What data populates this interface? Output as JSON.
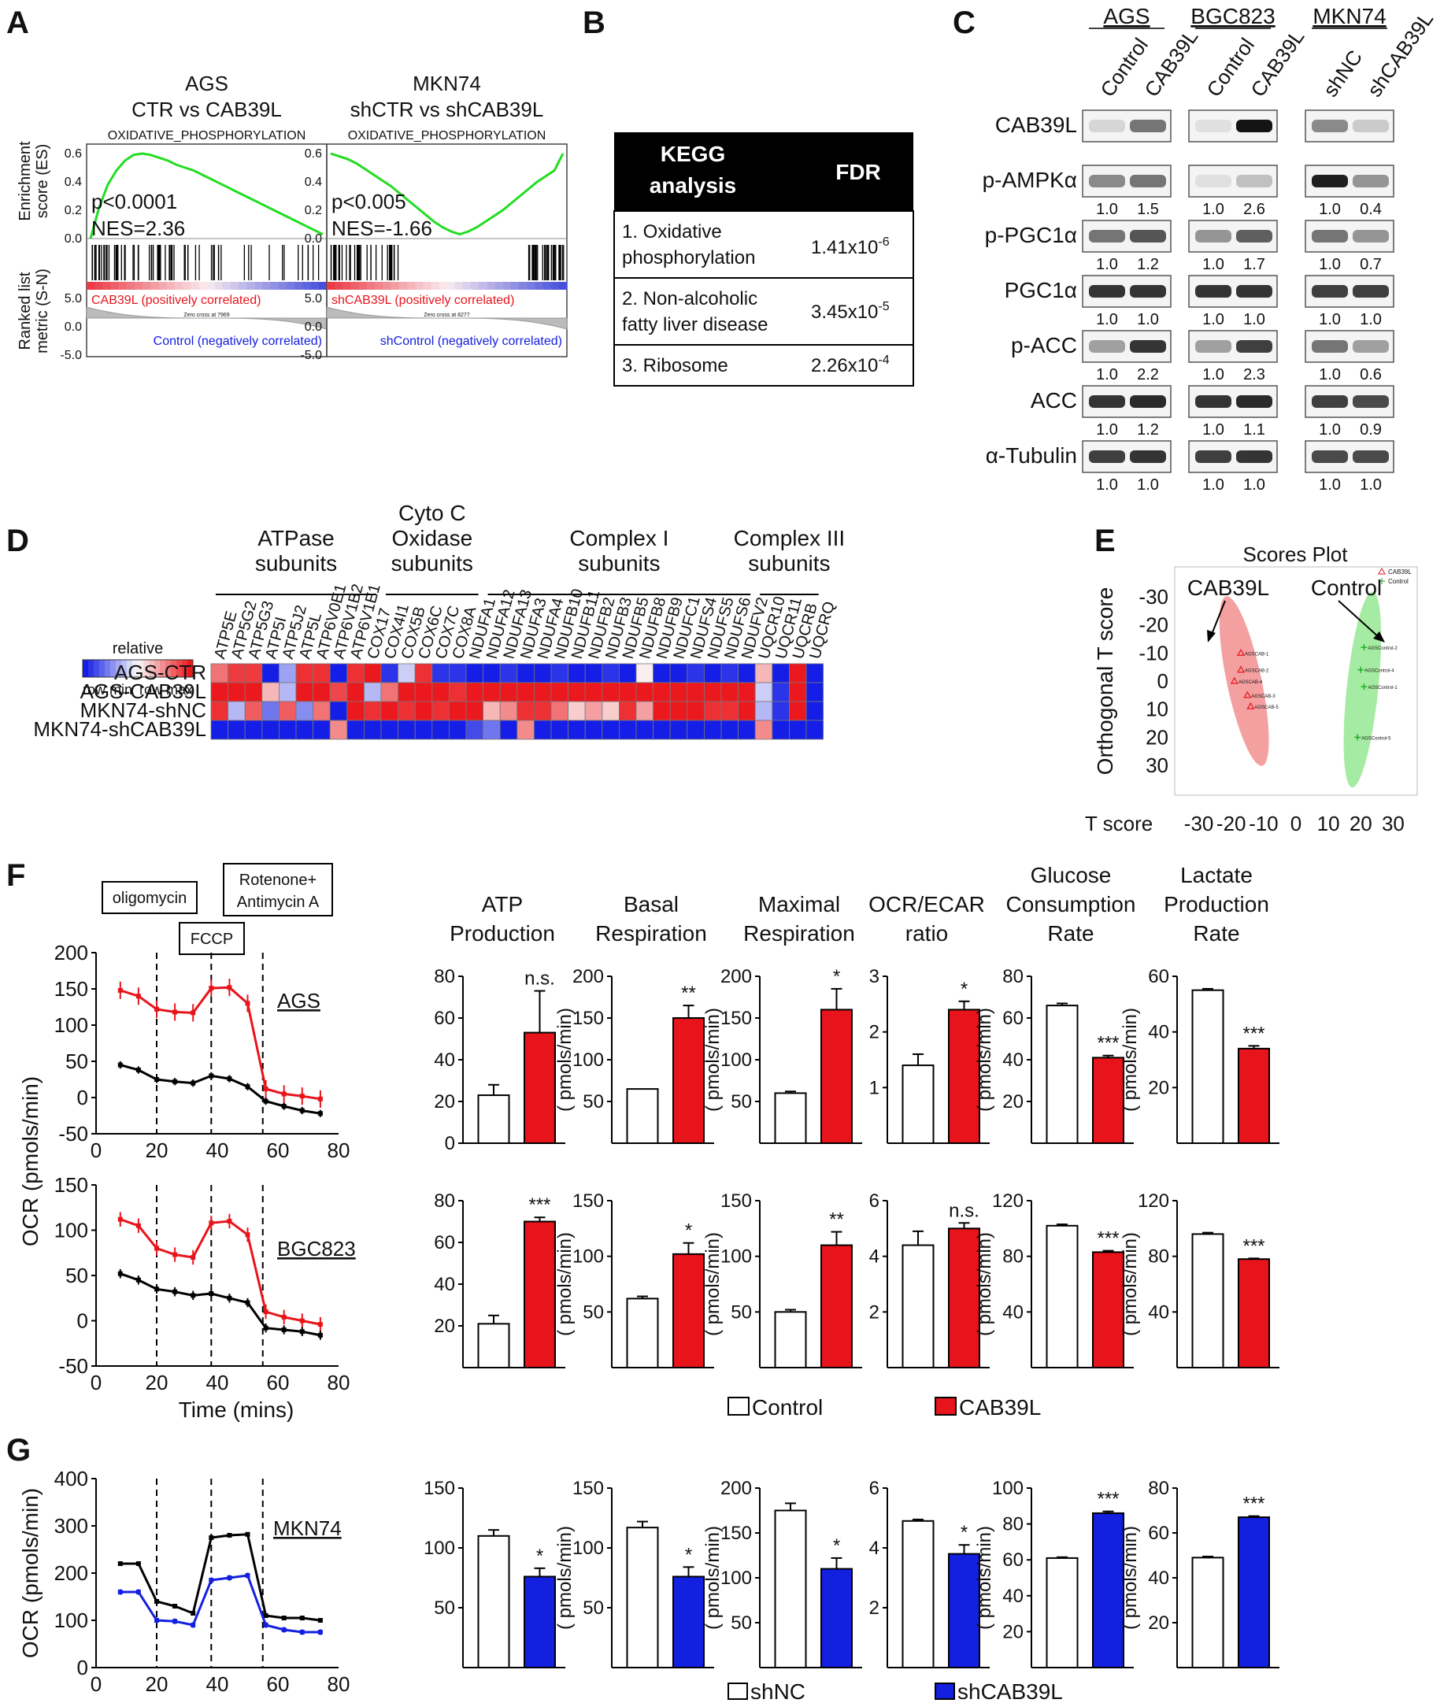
{
  "panel_labels": [
    "A",
    "B",
    "C",
    "D",
    "E",
    "F",
    "G"
  ],
  "panel_A": {
    "plots": [
      {
        "title_lines": [
          "AGS",
          "CTR vs CAB39L"
        ],
        "gene_set": "OXIDATIVE_PHOSPHORYLATION",
        "stats": [
          "p<0.0001",
          "NES=2.36"
        ],
        "pos_label": "CAB39L (positively correlated)",
        "neg_label": "Control (negatively correlated)",
        "zero_cross": "Zero cross at 7969",
        "es_ticks": [
          "0.6",
          "0.4",
          "0.2",
          "0.0"
        ],
        "rank_ticks": [
          "5.0",
          "0.0",
          "-5.0"
        ],
        "es_curve": [
          0.0,
          0.22,
          0.38,
          0.48,
          0.55,
          0.59,
          0.6,
          0.59,
          0.57,
          0.55,
          0.52,
          0.5,
          0.48,
          0.45,
          0.42,
          0.39,
          0.36,
          0.33,
          0.3,
          0.27,
          0.24,
          0.21,
          0.18,
          0.15,
          0.12,
          0.09,
          0.06,
          0.03
        ]
      },
      {
        "title_lines": [
          "MKN74",
          "shCTR vs shCAB39L"
        ],
        "gene_set": "OXIDATIVE_PHOSPHORYLATION",
        "stats": [
          "p<0.005",
          "NES=-1.66"
        ],
        "pos_label": "shCAB39L (positively correlated)",
        "neg_label": "shControl (negatively correlated)",
        "zero_cross": "Zero cross at 8277",
        "es_ticks": [
          "0.6",
          "0.4",
          "0.2",
          "0.0"
        ],
        "rank_ticks": [
          "5.0",
          "0.0",
          "-5.0"
        ],
        "es_curve": [
          0.6,
          0.58,
          0.56,
          0.53,
          0.49,
          0.45,
          0.41,
          0.37,
          0.32,
          0.27,
          0.22,
          0.17,
          0.12,
          0.08,
          0.05,
          0.03,
          0.05,
          0.08,
          0.12,
          0.16,
          0.2,
          0.25,
          0.3,
          0.35,
          0.4,
          0.44,
          0.48,
          0.6
        ]
      }
    ],
    "y_label_es": [
      "Enrichment",
      "score (ES)"
    ],
    "y_label_rank": [
      "Ranked list",
      "metric (S-N)"
    ]
  },
  "panel_B": {
    "header": [
      "KEGG",
      "analysis",
      "FDR"
    ],
    "rows": [
      {
        "term": [
          "1. Oxidative",
          "phosphorylation"
        ],
        "fdr": "1.41x10",
        "exp": "-6"
      },
      {
        "term": [
          "2. Non-alcoholic",
          "fatty liver disease"
        ],
        "fdr": "3.45x10",
        "exp": "-5"
      },
      {
        "term": [
          "3. Ribosome"
        ],
        "fdr": "2.26x10",
        "exp": "-4"
      }
    ]
  },
  "panel_C": {
    "cell_lines": [
      "AGS",
      "BGC823",
      "MKN74"
    ],
    "lanes": [
      [
        "Control",
        "CAB39L"
      ],
      [
        "Control",
        "CAB39L"
      ],
      [
        "shNC",
        "shCAB39L"
      ]
    ],
    "rows": [
      {
        "protein": "CAB39L",
        "values": []
      },
      {
        "protein": "p-AMPKα",
        "values": [
          [
            "1.0",
            "1.5"
          ],
          [
            "1.0",
            "2.6"
          ],
          [
            "1.0",
            "0.4"
          ]
        ]
      },
      {
        "protein": "p-PGC1α",
        "values": [
          [
            "1.0",
            "1.2"
          ],
          [
            "1.0",
            "1.7"
          ],
          [
            "1.0",
            "0.7"
          ]
        ]
      },
      {
        "protein": "PGC1α",
        "values": [
          [
            "1.0",
            "1.0"
          ],
          [
            "1.0",
            "1.0"
          ],
          [
            "1.0",
            "1.0"
          ]
        ]
      },
      {
        "protein": "p-ACC",
        "values": [
          [
            "1.0",
            "2.2"
          ],
          [
            "1.0",
            "2.3"
          ],
          [
            "1.0",
            "0.6"
          ]
        ]
      },
      {
        "protein": "ACC",
        "values": [
          [
            "1.0",
            "1.2"
          ],
          [
            "1.0",
            "1.1"
          ],
          [
            "1.0",
            "0.9"
          ]
        ]
      },
      {
        "protein": "α-Tubulin",
        "values": [
          [
            "1.0",
            "1.0"
          ],
          [
            "1.0",
            "1.0"
          ],
          [
            "1.0",
            "1.0"
          ]
        ]
      }
    ],
    "band_intensity": [
      [
        [
          0.1,
          0.55
        ],
        [
          0.05,
          1.0
        ],
        [
          0.45,
          0.15
        ]
      ],
      [
        [
          0.45,
          0.55
        ],
        [
          0.05,
          0.2
        ],
        [
          0.95,
          0.4
        ]
      ],
      [
        [
          0.55,
          0.7
        ],
        [
          0.4,
          0.65
        ],
        [
          0.55,
          0.4
        ]
      ],
      [
        [
          0.85,
          0.85
        ],
        [
          0.85,
          0.85
        ],
        [
          0.8,
          0.8
        ]
      ],
      [
        [
          0.35,
          0.85
        ],
        [
          0.35,
          0.8
        ],
        [
          0.55,
          0.35
        ]
      ],
      [
        [
          0.85,
          0.9
        ],
        [
          0.85,
          0.9
        ],
        [
          0.8,
          0.75
        ]
      ],
      [
        [
          0.8,
          0.85
        ],
        [
          0.8,
          0.85
        ],
        [
          0.75,
          0.75
        ]
      ]
    ]
  },
  "panel_D": {
    "groups": [
      {
        "name": [
          "ATPase",
          "subunits"
        ],
        "start": 0,
        "end": 9
      },
      {
        "name": [
          "Cyto C",
          "Oxidase",
          "subunits"
        ],
        "start": 10,
        "end": 15
      },
      {
        "name": [
          "Complex I",
          "subunits"
        ],
        "start": 16,
        "end": 31
      },
      {
        "name": [
          "Complex III",
          "subunits"
        ],
        "start": 32,
        "end": 35
      }
    ],
    "legend_title": "relative",
    "legend_labels": [
      "row min",
      "row max"
    ],
    "genes": [
      "ATP5E",
      "ATP5G2",
      "ATP5G3",
      "ATP5I",
      "ATP5J2",
      "ATP5L",
      "ATP6V0E1",
      "ATP6V1B2",
      "ATP6V1E1",
      "COX17",
      "COX4I1",
      "COX5B",
      "COX6C",
      "COX7C",
      "COX8A",
      "NDUFA1",
      "NDUFA12",
      "NDUFA13",
      "NDUFA3",
      "NDUFA4",
      "NDUFB10",
      "NDUFB11",
      "NDUFB2",
      "NDUFB3",
      "NDUFB5",
      "NDUFB8",
      "NDUFB9",
      "NDUFC1",
      "NDUFS4",
      "NDUFS5",
      "NDUFS6",
      "NDUFV2",
      "UQCR10",
      "UQCR11",
      "UQCRB",
      "UQCRQ"
    ],
    "samples": [
      "AGS-CTR",
      "AGS-CAB39L",
      "MKN74-shNC",
      "MKN74-shCAB39L"
    ],
    "matrix": [
      [
        0.6,
        0.85,
        0.85,
        -1,
        -0.4,
        0.9,
        0.9,
        -1,
        0.9,
        1,
        -0.9,
        -0.2,
        0.9,
        -0.9,
        -0.9,
        -1,
        -1,
        -0.9,
        -1,
        -1,
        -0.9,
        -1,
        -1,
        -0.9,
        -1,
        0.05,
        -1,
        -1,
        -0.9,
        -1,
        -0.9,
        -1,
        0.3,
        -1,
        1,
        -1
      ],
      [
        1,
        1,
        1,
        0.3,
        -0.3,
        1,
        1,
        0.8,
        1,
        -0.3,
        0.6,
        1,
        1,
        1,
        0.9,
        1,
        1,
        1,
        1,
        1,
        1,
        1,
        1,
        1,
        1,
        1,
        1,
        1,
        1,
        1,
        1,
        1,
        -0.2,
        -0.9,
        1,
        -1
      ],
      [
        0.9,
        -0.3,
        0.7,
        -0.6,
        0.7,
        -0.5,
        0.6,
        -1,
        1,
        0.9,
        1,
        0.9,
        1,
        0.9,
        1,
        1,
        0.3,
        0.5,
        0.9,
        0.9,
        0.6,
        0.2,
        0.4,
        0.2,
        0.9,
        0.4,
        1,
        1,
        1,
        0.9,
        0.9,
        1,
        -0.3,
        -0.9,
        1,
        -1
      ],
      [
        -1,
        -1,
        -1,
        -1,
        -1,
        -1,
        -1,
        0.5,
        -1,
        -1,
        -1,
        -1,
        -1,
        -1,
        -1,
        -0.8,
        -0.6,
        -1,
        0.5,
        -1,
        -1,
        -1,
        -1,
        -1,
        -1,
        -1,
        -1,
        -1,
        -1,
        -1,
        -1,
        -1,
        0.5,
        -1,
        -1,
        -1
      ]
    ]
  },
  "panel_E": {
    "title": "Scores Plot",
    "x_label": "T score",
    "y_label": "Orthogonal T score",
    "x_ticks": [
      "-30",
      "-20",
      "-10",
      "0",
      "10",
      "20",
      "30"
    ],
    "y_ticks": [
      "-30",
      "-20",
      "-10",
      "0",
      "10",
      "20",
      "30"
    ],
    "legend": [
      "CAB39L",
      "Control"
    ],
    "group_labels": [
      "CAB39L",
      "Control"
    ],
    "points": [
      {
        "label": "AGSCAB-1",
        "x": -17,
        "y": -10,
        "group": "CAB39L"
      },
      {
        "label": "AGSCAB-2",
        "x": -17,
        "y": -4,
        "group": "CAB39L"
      },
      {
        "label": "AGSCAB-4",
        "x": -19,
        "y": 0,
        "group": "CAB39L"
      },
      {
        "label": "AGSCAB-3",
        "x": -15,
        "y": 5,
        "group": "CAB39L"
      },
      {
        "label": "AGSCAB-5",
        "x": -14,
        "y": 9,
        "group": "CAB39L"
      },
      {
        "label": "AGSControl-2",
        "x": 21,
        "y": -12,
        "group": "Control"
      },
      {
        "label": "AGSControl-4",
        "x": 20,
        "y": -4,
        "group": "Control"
      },
      {
        "label": "AGSControl-1",
        "x": 21,
        "y": 2,
        "group": "Control"
      },
      {
        "label": "AGSControl-5",
        "x": 19,
        "y": 20,
        "group": "Control"
      }
    ]
  },
  "panel_F": {
    "annotations": [
      "oligomycin",
      "FCCP",
      "Rotenone+",
      "Antimycin A"
    ],
    "y_axis_label": "OCR (pmols/min)",
    "x_axis_label": "Time (mins)",
    "timecourse": [
      {
        "cell": "AGS",
        "ylim": [
          -50,
          200
        ],
        "y_ticks": [
          "200",
          "150",
          "100",
          "50",
          "0",
          "-50"
        ],
        "time": [
          8,
          14,
          20,
          26,
          32,
          38,
          44,
          50,
          56,
          62,
          68,
          74
        ],
        "red": [
          148,
          140,
          122,
          118,
          117,
          151,
          152,
          130,
          12,
          5,
          2,
          -2
        ],
        "black": [
          45,
          38,
          25,
          22,
          20,
          30,
          26,
          15,
          -5,
          -12,
          -18,
          -22
        ]
      },
      {
        "cell": "BGC823",
        "ylim": [
          -50,
          150
        ],
        "y_ticks": [
          "150",
          "100",
          "50",
          "0",
          "-50"
        ],
        "time": [
          8,
          14,
          20,
          26,
          32,
          38,
          44,
          50,
          56,
          62,
          68,
          74
        ],
        "red": [
          112,
          105,
          80,
          73,
          70,
          108,
          110,
          95,
          10,
          4,
          0,
          -4
        ],
        "black": [
          52,
          45,
          35,
          32,
          28,
          30,
          25,
          20,
          -8,
          -10,
          -12,
          -16
        ]
      }
    ],
    "x_ticks": [
      "0",
      "20",
      "40",
      "60",
      "80"
    ],
    "unit": "( pmols/min)",
    "bar_titles": [
      [
        "ATP",
        "Production"
      ],
      [
        "Basal",
        "Respiration"
      ],
      [
        "Maximal",
        "Respiration"
      ],
      [
        "OCR/ECAR",
        "ratio"
      ],
      [
        "Glucose",
        "Consumption",
        "Rate"
      ],
      [
        "Lactate",
        "Production",
        "Rate"
      ]
    ],
    "bars_row1": [
      {
        "ylim": [
          0,
          80
        ],
        "ticks": [
          "0",
          "20",
          "40",
          "60",
          "80"
        ],
        "values": [
          23,
          53
        ],
        "err": [
          5,
          20
        ],
        "sig": "n.s.",
        "axis_unit": false
      },
      {
        "ylim": [
          0,
          200
        ],
        "ticks": [
          "50",
          "100",
          "150",
          "200"
        ],
        "values": [
          65,
          150
        ],
        "err": [
          0,
          15
        ],
        "sig": "**",
        "axis_unit": true
      },
      {
        "ylim": [
          0,
          200
        ],
        "ticks": [
          "50",
          "100",
          "150",
          "200"
        ],
        "values": [
          60,
          160
        ],
        "err": [
          2,
          25
        ],
        "sig": "*",
        "axis_unit": true
      },
      {
        "ylim": [
          0,
          3
        ],
        "ticks": [
          "1",
          "2",
          "3"
        ],
        "values": [
          1.4,
          2.4
        ],
        "err": [
          0.2,
          0.15
        ],
        "sig": "*",
        "axis_unit": false
      },
      {
        "ylim": [
          0,
          80
        ],
        "ticks": [
          "20",
          "40",
          "60",
          "80"
        ],
        "values": [
          66,
          41
        ],
        "err": [
          1,
          1
        ],
        "sig": "***",
        "axis_unit": true
      },
      {
        "ylim": [
          0,
          60
        ],
        "ticks": [
          "20",
          "40",
          "60"
        ],
        "values": [
          55,
          34
        ],
        "err": [
          0.5,
          1
        ],
        "sig": "***",
        "axis_unit": true
      }
    ],
    "bars_row2": [
      {
        "ylim": [
          0,
          80
        ],
        "ticks": [
          "20",
          "40",
          "60",
          "80"
        ],
        "values": [
          21,
          70
        ],
        "err": [
          4,
          2
        ],
        "sig": "***",
        "axis_unit": false
      },
      {
        "ylim": [
          0,
          150
        ],
        "ticks": [
          "50",
          "100",
          "150"
        ],
        "values": [
          62,
          102
        ],
        "err": [
          2,
          10
        ],
        "sig": "*",
        "axis_unit": true
      },
      {
        "ylim": [
          0,
          150
        ],
        "ticks": [
          "50",
          "100",
          "150"
        ],
        "values": [
          50,
          110
        ],
        "err": [
          2,
          12
        ],
        "sig": "**",
        "axis_unit": true
      },
      {
        "ylim": [
          0,
          6
        ],
        "ticks": [
          "2",
          "4",
          "6"
        ],
        "values": [
          4.4,
          5.0
        ],
        "err": [
          0.5,
          0.2
        ],
        "sig": "n.s.",
        "axis_unit": false
      },
      {
        "ylim": [
          0,
          120
        ],
        "ticks": [
          "40",
          "80",
          "120"
        ],
        "values": [
          102,
          83
        ],
        "err": [
          1,
          1
        ],
        "sig": "***",
        "axis_unit": true
      },
      {
        "ylim": [
          0,
          120
        ],
        "ticks": [
          "40",
          "80",
          "120"
        ],
        "values": [
          96,
          78
        ],
        "err": [
          1,
          0.5
        ],
        "sig": "***",
        "axis_unit": true
      }
    ],
    "legend": [
      "Control",
      "CAB39L"
    ]
  },
  "panel_G": {
    "y_axis_label": "OCR (pmols/min)",
    "timecourse": {
      "cell": "MKN74",
      "ylim": [
        0,
        400
      ],
      "y_ticks": [
        "400",
        "300",
        "200",
        "100",
        "0"
      ],
      "time": [
        8,
        14,
        20,
        26,
        32,
        38,
        44,
        50,
        56,
        62,
        68,
        74
      ],
      "black": [
        220,
        220,
        140,
        130,
        115,
        275,
        280,
        282,
        110,
        105,
        105,
        100
      ],
      "blue": [
        160,
        160,
        100,
        98,
        90,
        185,
        190,
        195,
        90,
        80,
        75,
        75
      ]
    },
    "x_ticks": [
      "0",
      "20",
      "40",
      "60",
      "80"
    ],
    "unit": "( pmols/min)",
    "bars": [
      {
        "ylim": [
          0,
          150
        ],
        "ticks": [
          "50",
          "100",
          "150"
        ],
        "values": [
          110,
          76
        ],
        "err": [
          5,
          7
        ],
        "sig": "*",
        "axis_unit": false
      },
      {
        "ylim": [
          0,
          150
        ],
        "ticks": [
          "50",
          "100",
          "150"
        ],
        "values": [
          117,
          76
        ],
        "err": [
          5,
          8
        ],
        "sig": "*",
        "axis_unit": true
      },
      {
        "ylim": [
          0,
          200
        ],
        "ticks": [
          "50",
          "100",
          "150",
          "200"
        ],
        "values": [
          175,
          110
        ],
        "err": [
          8,
          12
        ],
        "sig": "*",
        "axis_unit": true
      },
      {
        "ylim": [
          0,
          6
        ],
        "ticks": [
          "2",
          "4",
          "6"
        ],
        "values": [
          4.9,
          3.8
        ],
        "err": [
          0.05,
          0.3
        ],
        "sig": "*",
        "axis_unit": false
      },
      {
        "ylim": [
          0,
          100
        ],
        "ticks": [
          "20",
          "40",
          "60",
          "80",
          "100"
        ],
        "values": [
          61,
          86
        ],
        "err": [
          0.5,
          1
        ],
        "sig": "***",
        "axis_unit": true
      },
      {
        "ylim": [
          0,
          80
        ],
        "ticks": [
          "20",
          "40",
          "60",
          "80"
        ],
        "values": [
          49,
          67
        ],
        "err": [
          0.5,
          0.5
        ],
        "sig": "***",
        "axis_unit": true
      }
    ],
    "legend": [
      "shNC",
      "shCAB39L"
    ]
  },
  "colors": {
    "red": "#e8141b",
    "blue": "#1420e0",
    "green": "#22dd22",
    "pink": "#f07878",
    "lightgreen": "#90e68c"
  }
}
